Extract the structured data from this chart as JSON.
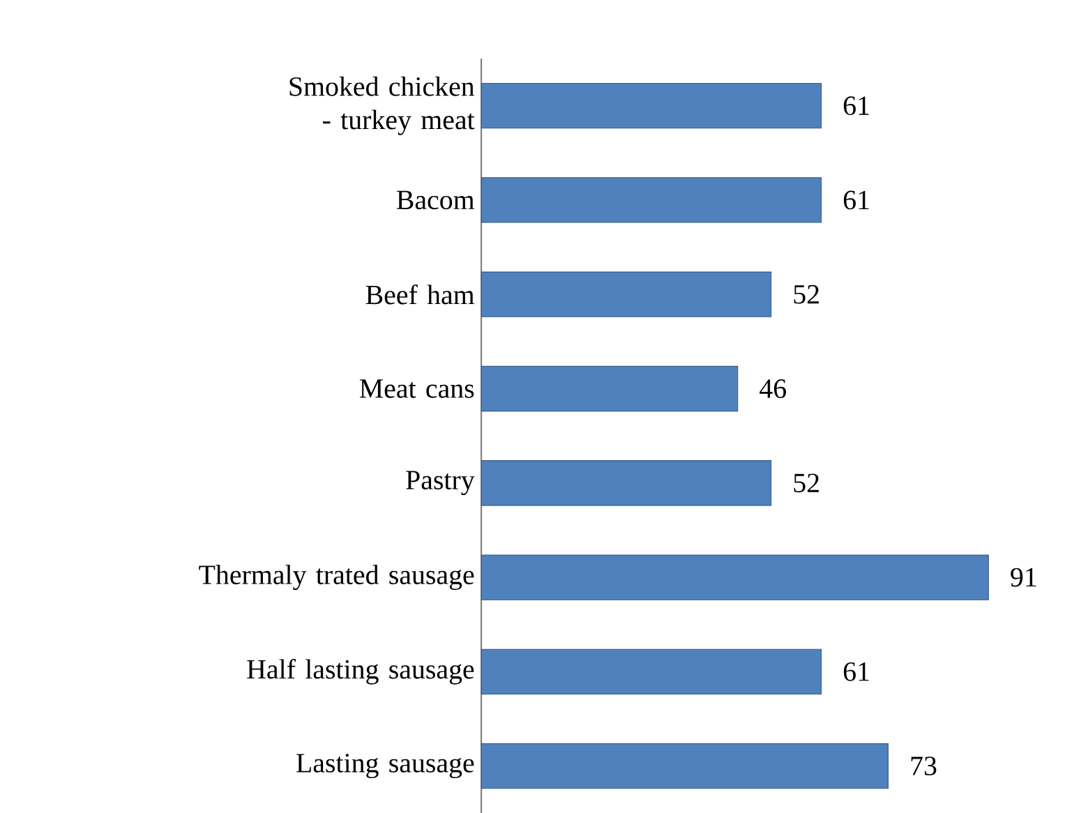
{
  "chart_data": {
    "type": "bar",
    "orientation": "horizontal",
    "categories": [
      "Smoked chicken - turkey meat",
      "Bacom",
      "Beef ham",
      "Meat cans",
      "Pastry",
      "Thermaly trated sausage",
      "Half lasting sausage",
      "Lasting sausage"
    ],
    "values": [
      61,
      61,
      52,
      46,
      52,
      91,
      61,
      73
    ],
    "value_labels": [
      "61",
      "61",
      "52",
      "46",
      "52",
      "91",
      "61",
      "73"
    ],
    "color": "#4f81bd"
  }
}
